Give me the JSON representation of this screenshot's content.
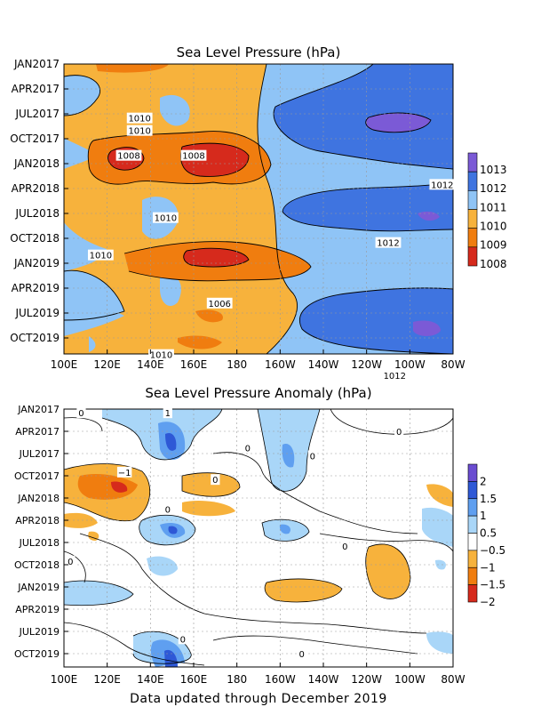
{
  "chart_data": [
    {
      "type": "heatmap",
      "title": "Sea Level Pressure (hPa)",
      "x_ticks": [
        "100E",
        "120E",
        "140E",
        "160E",
        "180",
        "160W",
        "140W",
        "120W",
        "100W",
        "80W"
      ],
      "y_ticks": [
        "JAN2017",
        "APR2017",
        "JUL2017",
        "OCT2017",
        "JAN2018",
        "APR2018",
        "JUL2018",
        "OCT2018",
        "JAN2019",
        "APR2019",
        "JUL2019",
        "OCT2019"
      ],
      "legend": {
        "placement": "right",
        "labels": [
          "1013",
          "1012",
          "1011",
          "1010",
          "1009",
          "1008"
        ],
        "colors": [
          "#7b5ad6",
          "#3f74e0",
          "#8fc4f6",
          "#f7b23c",
          "#f07d0f",
          "#d62a1c"
        ]
      },
      "contour_labels": [
        {
          "text": "1010",
          "lon": 135,
          "month": 6.5
        },
        {
          "text": "1010",
          "lon": 135,
          "month": 8
        },
        {
          "text": "1008",
          "lon": 130,
          "month": 11
        },
        {
          "text": "1008",
          "lon": 160,
          "month": 11
        },
        {
          "text": "1012",
          "lon": 275,
          "month": 14.5
        },
        {
          "text": "1010",
          "lon": 147,
          "month": 18.5
        },
        {
          "text": "1012",
          "lon": 250,
          "month": 21.5
        },
        {
          "text": "1010",
          "lon": 117,
          "month": 23
        },
        {
          "text": "1006",
          "lon": 172,
          "month": 28.8
        },
        {
          "text": "1010",
          "lon": 145,
          "month": 35
        },
        {
          "text": "1012",
          "lon": 253,
          "month": 37.5
        }
      ]
    },
    {
      "type": "heatmap",
      "title": "Sea Level Pressure Anomaly (hPa)",
      "x_ticks": [
        "100E",
        "120E",
        "140E",
        "160E",
        "180",
        "160W",
        "140W",
        "120W",
        "100W",
        "80W"
      ],
      "y_ticks": [
        "JAN2017",
        "APR2017",
        "JUL2017",
        "OCT2017",
        "JAN2018",
        "APR2018",
        "JUL2018",
        "OCT2018",
        "JAN2019",
        "APR2019",
        "JUL2019",
        "OCT2019"
      ],
      "legend": {
        "placement": "right",
        "labels": [
          "2",
          "1.5",
          "1",
          "0.5",
          "−0.5",
          "−1",
          "−1.5",
          "−2"
        ],
        "colors": [
          "#6a4cd1",
          "#2e58d6",
          "#5f9ff0",
          "#a9d6f8",
          "#ffffff",
          "#f7b23c",
          "#f07d0f",
          "#d62a1c"
        ]
      },
      "contour_labels": [
        {
          "text": "0",
          "lon": 108,
          "month": 0.5
        },
        {
          "text": "1",
          "lon": 148,
          "month": 0.5
        },
        {
          "text": "0",
          "lon": 255,
          "month": 3
        },
        {
          "text": "0",
          "lon": 185,
          "month": 5.2
        },
        {
          "text": "0",
          "lon": 215,
          "month": 6.3
        },
        {
          "text": "−1",
          "lon": 128,
          "month": 8.5
        },
        {
          "text": "0",
          "lon": 170,
          "month": 9.5
        },
        {
          "text": "0",
          "lon": 148,
          "month": 13.5
        },
        {
          "text": "0",
          "lon": 230,
          "month": 18.5
        },
        {
          "text": "0",
          "lon": 103,
          "month": 20.5
        },
        {
          "text": "0",
          "lon": 155,
          "month": 31
        },
        {
          "text": "0",
          "lon": 210,
          "month": 33
        }
      ]
    }
  ],
  "footer": "Data updated through December 2019"
}
